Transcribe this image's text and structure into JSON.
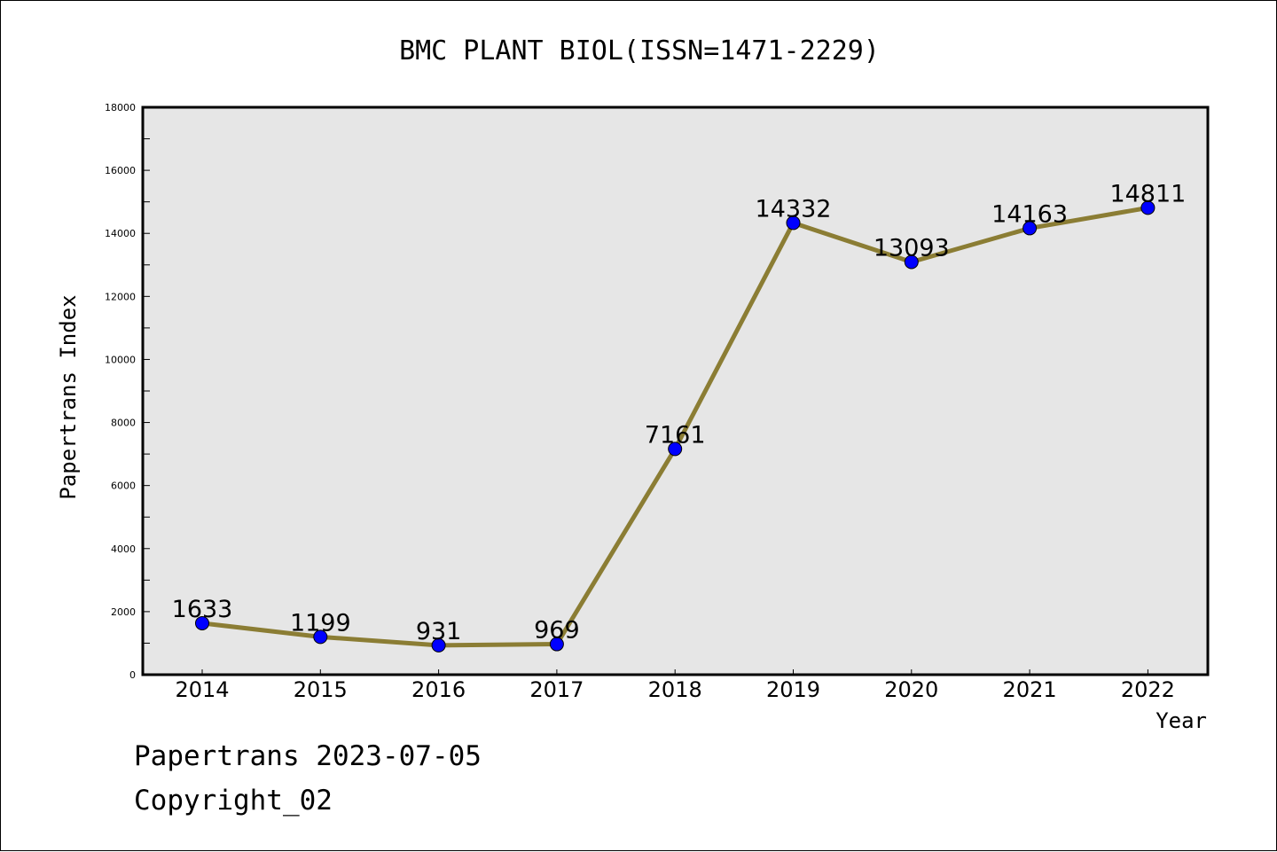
{
  "chart_data": {
    "type": "line",
    "title": "BMC PLANT BIOL(ISSN=1471-2229)",
    "xlabel": "Year",
    "ylabel": "Papertrans Index",
    "categories": [
      "2014",
      "2015",
      "2016",
      "2017",
      "2018",
      "2019",
      "2020",
      "2021",
      "2022"
    ],
    "series": [
      {
        "values": [
          1633,
          1199,
          931,
          969,
          7161,
          14332,
          13093,
          14163,
          14811
        ]
      }
    ],
    "data_labels": [
      "1633",
      "1199",
      "931",
      "969",
      "7161",
      "14332",
      "13093",
      "14163",
      "14811"
    ],
    "ylim": [
      0,
      18000
    ],
    "yticks": [
      0,
      2000,
      4000,
      6000,
      8000,
      10000,
      12000,
      14000,
      16000,
      18000
    ],
    "ytick_labels": [
      "0",
      "2000",
      "4000",
      "6000",
      "8000",
      "10000",
      "12000",
      "14000",
      "16000",
      "18000"
    ],
    "grid": false,
    "legend": "none",
    "colors": {
      "line": "#8b7d34",
      "marker_fill": "#0000ff",
      "plot_background": "#e6e6e6"
    }
  },
  "footer": {
    "line1": "Papertrans 2023-07-05",
    "line2": "Copyright_02"
  }
}
